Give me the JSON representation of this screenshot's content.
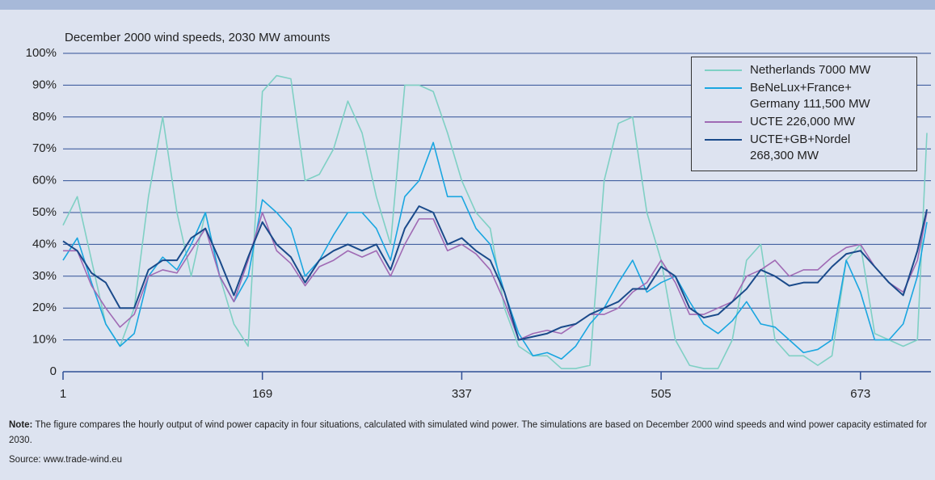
{
  "chart_data": {
    "type": "line",
    "title": "December 2000 wind speeds, 2030 MW amounts",
    "x": [
      1,
      13,
      25,
      37,
      49,
      61,
      73,
      85,
      97,
      109,
      121,
      133,
      145,
      157,
      169,
      181,
      193,
      205,
      217,
      229,
      241,
      253,
      265,
      277,
      289,
      301,
      313,
      325,
      337,
      349,
      361,
      373,
      385,
      397,
      409,
      421,
      433,
      445,
      457,
      469,
      481,
      493,
      505,
      517,
      529,
      541,
      553,
      565,
      577,
      589,
      601,
      613,
      625,
      637,
      649,
      661,
      673,
      685,
      697,
      709,
      721,
      729
    ],
    "series": [
      {
        "name": "Netherlands 7000 MW",
        "color": "#7fd0c4",
        "values": [
          46,
          55,
          35,
          15,
          8,
          20,
          55,
          80,
          50,
          30,
          50,
          30,
          15,
          8,
          88,
          93,
          92,
          60,
          62,
          70,
          85,
          75,
          55,
          40,
          90,
          90,
          88,
          75,
          60,
          50,
          45,
          20,
          8,
          5,
          5,
          1,
          1,
          2,
          60,
          78,
          80,
          50,
          35,
          10,
          2,
          1,
          1,
          10,
          35,
          40,
          10,
          5,
          5,
          2,
          5,
          35,
          40,
          12,
          10,
          8,
          10,
          75
        ]
      },
      {
        "name": "BeNeLux+France+ Germany 111,500 MW",
        "color": "#1aa6e0",
        "values": [
          35,
          42,
          28,
          15,
          8,
          12,
          30,
          36,
          32,
          40,
          50,
          30,
          22,
          30,
          54,
          50,
          45,
          30,
          35,
          43,
          50,
          50,
          45,
          35,
          55,
          60,
          72,
          55,
          55,
          45,
          40,
          25,
          12,
          5,
          6,
          4,
          8,
          15,
          20,
          28,
          35,
          25,
          28,
          30,
          22,
          15,
          12,
          16,
          22,
          15,
          14,
          10,
          6,
          7,
          10,
          35,
          25,
          10,
          10,
          15,
          30,
          47
        ]
      },
      {
        "name": "UCTE 226,000 MW",
        "color": "#a06ab4",
        "values": [
          38,
          38,
          27,
          20,
          14,
          18,
          30,
          32,
          31,
          38,
          45,
          30,
          22,
          35,
          50,
          38,
          34,
          27,
          33,
          35,
          38,
          36,
          38,
          30,
          40,
          48,
          48,
          38,
          40,
          37,
          32,
          22,
          10,
          12,
          13,
          12,
          15,
          18,
          18,
          20,
          25,
          28,
          35,
          28,
          18,
          18,
          20,
          22,
          30,
          32,
          35,
          30,
          32,
          32,
          36,
          39,
          40,
          33,
          28,
          25,
          35,
          50
        ]
      },
      {
        "name": "UCTE+GB+Nordel 268,300 MW",
        "color": "#1a4a8a",
        "values": [
          41,
          38,
          31,
          28,
          20,
          20,
          32,
          35,
          35,
          42,
          45,
          35,
          24,
          36,
          47,
          40,
          36,
          28,
          35,
          38,
          40,
          38,
          40,
          32,
          45,
          52,
          50,
          40,
          42,
          38,
          35,
          25,
          10,
          11,
          12,
          14,
          15,
          18,
          20,
          22,
          26,
          26,
          33,
          30,
          20,
          17,
          18,
          22,
          26,
          32,
          30,
          27,
          28,
          28,
          33,
          37,
          38,
          33,
          28,
          24,
          38,
          51
        ]
      }
    ],
    "xlim": [
      1,
      729
    ],
    "xticks": [
      1,
      169,
      337,
      505,
      673
    ],
    "ylim": [
      0,
      100
    ],
    "yticks": [
      0,
      {
        "value": 10,
        "label": "10%"
      },
      {
        "value": 20,
        "label": "20%"
      },
      {
        "value": 30,
        "label": "30%"
      },
      {
        "value": 40,
        "label": "40%"
      },
      {
        "value": 50,
        "label": "50%"
      },
      {
        "value": 60,
        "label": "60%"
      },
      {
        "value": 70,
        "label": "70%"
      },
      {
        "value": 80,
        "label": "80%"
      },
      {
        "value": 90,
        "label": "90%"
      },
      {
        "value": 100,
        "label": "100%"
      }
    ],
    "grid": true,
    "legend": "top-right"
  },
  "note": {
    "label": "Note:",
    "text": "The figure compares the hourly output of wind power capacity in four situations, calculated with simulated wind power. The simulations are based on December 2000 wind speeds and wind power capacity estimated for 2030."
  },
  "source": "Source: www.trade-wind.eu"
}
